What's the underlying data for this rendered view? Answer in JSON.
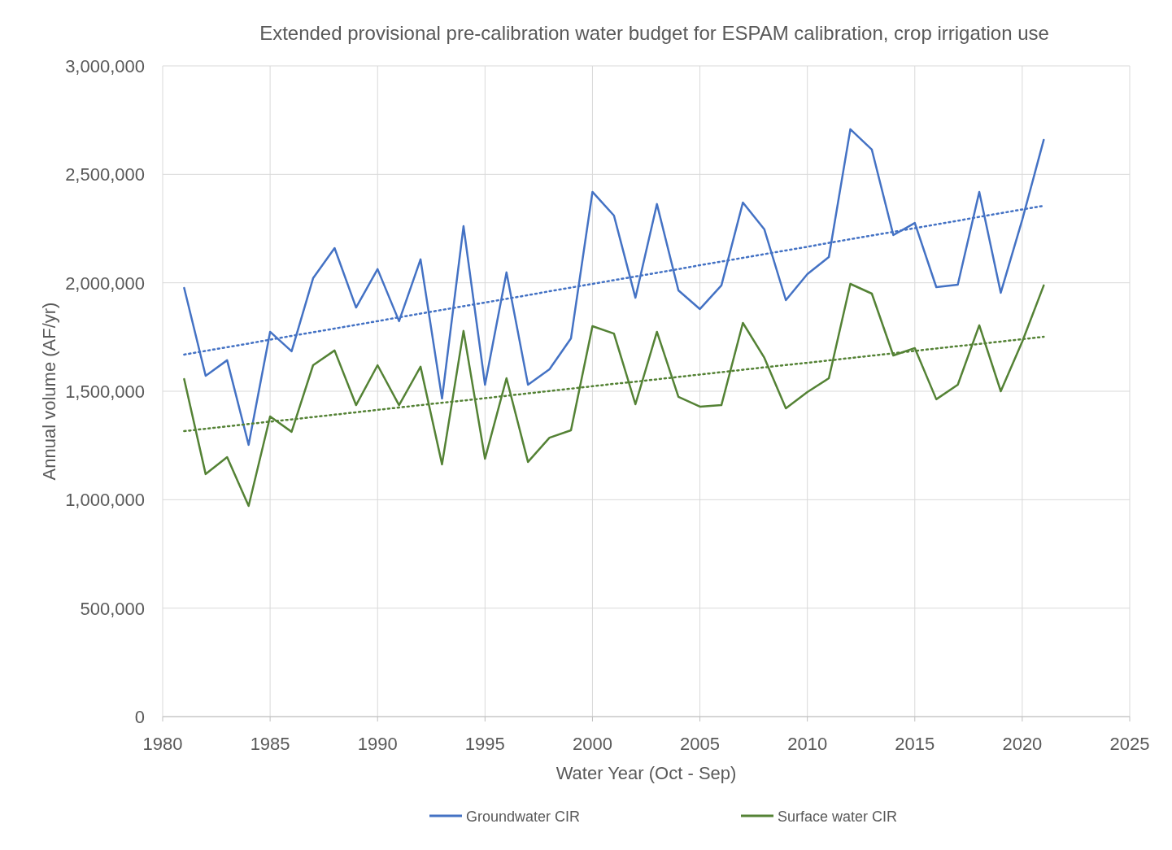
{
  "chart_data": {
    "type": "line",
    "title": "Extended provisional pre-calibration water budget for ESPAM calibration, crop irrigation use",
    "xlabel": "Water Year (Oct - Sep)",
    "ylabel": "Annual volume (AF/yr)",
    "x": [
      1981,
      1982,
      1983,
      1984,
      1985,
      1986,
      1987,
      1988,
      1989,
      1990,
      1991,
      1992,
      1993,
      1994,
      1995,
      1996,
      1997,
      1998,
      1999,
      2000,
      2001,
      2002,
      2003,
      2004,
      2005,
      2006,
      2007,
      2008,
      2009,
      2010,
      2011,
      2012,
      2013,
      2014,
      2015,
      2016,
      2017,
      2018,
      2019,
      2020,
      2021
    ],
    "series": [
      {
        "name": "Groundwater CIR",
        "color": "#4472c4",
        "values": [
          1976000,
          1571000,
          1643000,
          1253000,
          1774000,
          1684000,
          2021000,
          2160000,
          1886000,
          2063000,
          1823000,
          2108000,
          1466000,
          2261000,
          1530000,
          2048000,
          1530000,
          1601000,
          1744000,
          2419000,
          2310000,
          1931000,
          2363000,
          1965000,
          1879000,
          1988000,
          2370000,
          2246000,
          1920000,
          2040000,
          2119000,
          2708000,
          2614000,
          2220000,
          2276000,
          1980000,
          1991000,
          2419000,
          1954000,
          2291000,
          2659000
        ]
      },
      {
        "name": "Surface water CIR",
        "color": "#548235",
        "values": [
          1556000,
          1118000,
          1196000,
          971000,
          1384000,
          1313000,
          1620000,
          1688000,
          1436000,
          1620000,
          1436000,
          1613000,
          1163000,
          1778000,
          1189000,
          1560000,
          1174000,
          1286000,
          1320000,
          1800000,
          1766000,
          1440000,
          1774000,
          1474000,
          1429000,
          1436000,
          1815000,
          1654000,
          1421000,
          1496000,
          1560000,
          1995000,
          1950000,
          1665000,
          1699000,
          1463000,
          1530000,
          1804000,
          1500000,
          1729000,
          1988000
        ]
      },
      {
        "type": "line",
        "color": "#4472c4",
        "line_style": "dotted",
        "values": [
          1669000,
          1686000,
          1703000,
          1720000,
          1738000,
          1755000,
          1772000,
          1789000,
          1806000,
          1823000,
          1841000,
          1858000,
          1875000,
          1892000,
          1909000,
          1926000,
          1943000,
          1961000,
          1978000,
          1995000,
          2012000,
          2029000,
          2046000,
          2063000,
          2081000,
          2098000,
          2115000,
          2132000,
          2149000,
          2166000,
          2184000,
          2201000,
          2218000,
          2235000,
          2252000,
          2269000,
          2286000,
          2304000,
          2321000,
          2338000,
          2355000
        ]
      },
      {
        "type": "line",
        "color": "#548235",
        "line_style": "dotted",
        "values": [
          1316000,
          1327000,
          1338000,
          1349000,
          1360000,
          1370000,
          1381000,
          1392000,
          1403000,
          1414000,
          1425000,
          1436000,
          1447000,
          1457000,
          1468000,
          1479000,
          1490000,
          1501000,
          1512000,
          1523000,
          1534000,
          1544000,
          1555000,
          1566000,
          1577000,
          1588000,
          1599000,
          1610000,
          1621000,
          1631000,
          1642000,
          1653000,
          1664000,
          1675000,
          1686000,
          1697000,
          1708000,
          1718000,
          1729000,
          1740000,
          1751000
        ]
      }
    ],
    "xlim": [
      1980,
      2025
    ],
    "xticks": [
      1980,
      1985,
      1990,
      1995,
      2000,
      2005,
      2010,
      2015,
      2020,
      2025
    ],
    "ylim": [
      0,
      3000000
    ],
    "yticks": [
      {
        "value": 0,
        "label": "0"
      },
      {
        "value": 500000,
        "label": "500,000"
      },
      {
        "value": 1000000,
        "label": "1,000,000"
      },
      {
        "value": 1500000,
        "label": "1,500,000"
      },
      {
        "value": 2000000,
        "label": "2,000,000"
      },
      {
        "value": 2500000,
        "label": "2,500,000"
      },
      {
        "value": 3000000,
        "label": "3,000,000"
      }
    ],
    "grid": true,
    "legend": "bottom",
    "line_style": "solid"
  }
}
